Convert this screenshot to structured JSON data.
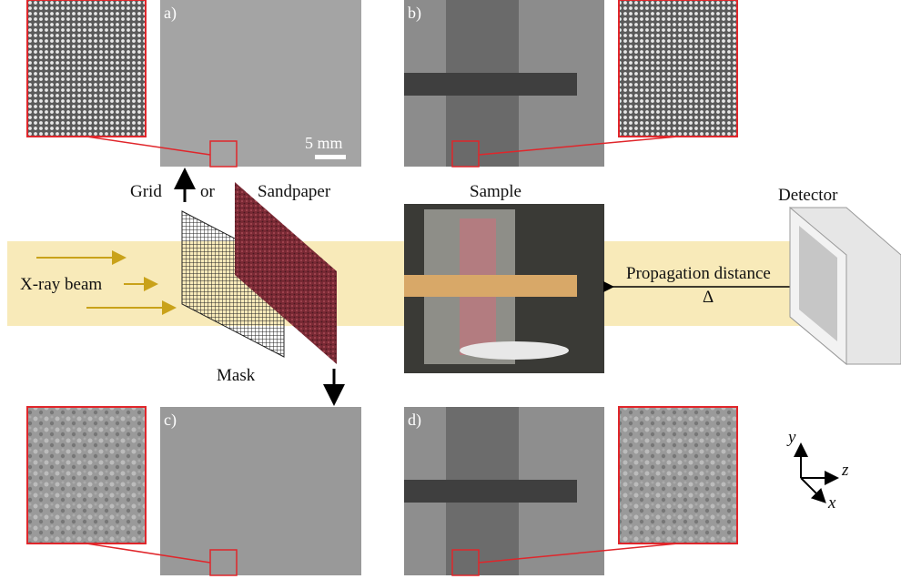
{
  "panels": {
    "a": "a)",
    "b": "b)",
    "c": "c)",
    "d": "d)"
  },
  "scale_bar": "5 mm",
  "labels": {
    "grid": "Grid",
    "or": "or",
    "sandpaper": "Sandpaper",
    "sample": "Sample",
    "detector": "Detector",
    "beam": "X-ray beam",
    "mask": "Mask",
    "propagation": "Propagation distance",
    "delta": "Δ"
  },
  "axes": {
    "y": "y",
    "z": "z",
    "x": "x"
  }
}
